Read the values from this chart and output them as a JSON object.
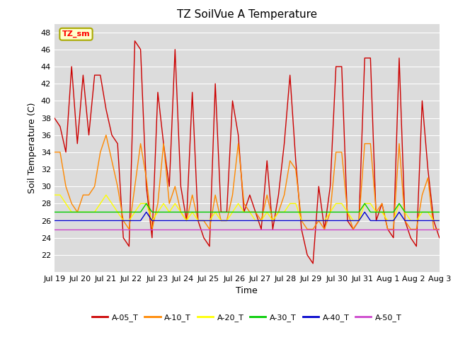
{
  "title": "TZ SoilVue A Temperature",
  "ylabel": "Soil Temperature (C)",
  "xlabel": "Time",
  "ylim": [
    20,
    49
  ],
  "bg_color": "#dcdcdc",
  "fig_color": "#ffffff",
  "annotation_text": "TZ_sm",
  "annotation_bg": "#ffffcc",
  "annotation_border": "#aaaa00",
  "series": {
    "A-05_T": {
      "color": "#cc0000",
      "data": [
        38,
        37,
        34,
        44,
        35,
        43,
        36,
        43,
        43,
        39,
        36,
        35,
        24,
        23,
        47,
        46,
        30,
        24,
        41,
        35,
        30,
        46,
        30,
        26,
        41,
        26,
        24,
        23,
        42,
        27,
        27,
        40,
        36,
        27,
        29,
        27,
        25,
        33,
        25,
        29,
        35,
        43,
        33,
        25,
        22,
        21,
        30,
        25,
        30,
        44,
        44,
        26,
        25,
        26,
        45,
        45,
        26,
        28,
        25,
        24,
        45,
        26,
        24,
        23,
        40,
        32,
        26,
        24
      ]
    },
    "A-10_T": {
      "color": "#ff8800",
      "data": [
        34,
        34,
        30,
        28,
        27,
        29,
        29,
        30,
        34,
        36,
        33,
        30,
        26,
        25,
        30,
        35,
        31,
        25,
        28,
        35,
        28,
        30,
        27,
        26,
        29,
        26,
        26,
        25,
        29,
        26,
        26,
        29,
        35,
        28,
        27,
        27,
        26,
        29,
        26,
        27,
        29,
        33,
        32,
        26,
        25,
        25,
        26,
        25,
        27,
        34,
        34,
        27,
        25,
        26,
        35,
        35,
        27,
        28,
        25,
        25,
        35,
        26,
        25,
        25,
        29,
        31,
        25,
        25
      ]
    },
    "A-20_T": {
      "color": "#ffff00",
      "data": [
        29,
        29,
        28,
        27,
        27,
        27,
        27,
        27,
        28,
        29,
        28,
        27,
        26,
        26,
        27,
        28,
        28,
        26,
        27,
        28,
        27,
        28,
        27,
        26,
        27,
        26,
        26,
        26,
        27,
        26,
        26,
        27,
        28,
        27,
        27,
        26,
        26,
        27,
        26,
        27,
        27,
        28,
        28,
        26,
        26,
        26,
        26,
        26,
        27,
        28,
        28,
        27,
        26,
        26,
        28,
        28,
        27,
        27,
        26,
        26,
        28,
        27,
        26,
        26,
        27,
        27,
        26,
        26
      ]
    },
    "A-30_T": {
      "color": "#00cc00",
      "data": [
        27,
        27,
        27,
        27,
        27,
        27,
        27,
        27,
        27,
        27,
        27,
        27,
        27,
        27,
        27,
        27,
        28,
        27,
        27,
        27,
        27,
        27,
        27,
        27,
        27,
        27,
        27,
        27,
        27,
        27,
        27,
        27,
        27,
        27,
        27,
        27,
        27,
        27,
        27,
        27,
        27,
        27,
        27,
        27,
        27,
        27,
        27,
        27,
        27,
        27,
        27,
        27,
        27,
        27,
        28,
        27,
        27,
        27,
        27,
        27,
        28,
        27,
        27,
        27,
        27,
        27,
        27,
        27
      ]
    },
    "A-40_T": {
      "color": "#0000cc",
      "data": [
        26,
        26,
        26,
        26,
        26,
        26,
        26,
        26,
        26,
        26,
        26,
        26,
        26,
        26,
        26,
        26,
        27,
        26,
        26,
        26,
        26,
        26,
        26,
        26,
        26,
        26,
        26,
        26,
        26,
        26,
        26,
        26,
        26,
        26,
        26,
        26,
        26,
        26,
        26,
        26,
        26,
        26,
        26,
        26,
        26,
        26,
        26,
        26,
        26,
        26,
        26,
        26,
        26,
        26,
        27,
        26,
        26,
        26,
        26,
        26,
        27,
        26,
        26,
        26,
        26,
        26,
        26,
        26
      ]
    },
    "A-50_T": {
      "color": "#cc44cc",
      "data": [
        25,
        25,
        25,
        25,
        25,
        25,
        25,
        25,
        25,
        25,
        25,
        25,
        25,
        25,
        25,
        25,
        25,
        25,
        25,
        25,
        25,
        25,
        25,
        25,
        25,
        25,
        25,
        25,
        25,
        25,
        25,
        25,
        25,
        25,
        25,
        25,
        25,
        25,
        25,
        25,
        25,
        25,
        25,
        25,
        25,
        25,
        25,
        25,
        25,
        25,
        25,
        25,
        25,
        25,
        25,
        25,
        25,
        25,
        25,
        25,
        25,
        25,
        25,
        25,
        25,
        25,
        25,
        25
      ]
    }
  },
  "xtick_labels": [
    "Jul 19",
    "Jul 20",
    "Jul 21",
    "Jul 22",
    "Jul 23",
    "Jul 24",
    "Jul 25",
    "Jul 26",
    "Jul 27",
    "Jul 28",
    "Jul 29",
    "Jul 30",
    "Jul 31",
    "Aug 1",
    "Aug 2",
    "Aug 3"
  ],
  "ytick_vals": [
    22,
    24,
    26,
    28,
    30,
    32,
    34,
    36,
    38,
    40,
    42,
    44,
    46,
    48
  ],
  "grid_color": "#ffffff",
  "linewidth": 1.0,
  "title_fontsize": 11,
  "axis_fontsize": 9,
  "tick_fontsize": 8
}
